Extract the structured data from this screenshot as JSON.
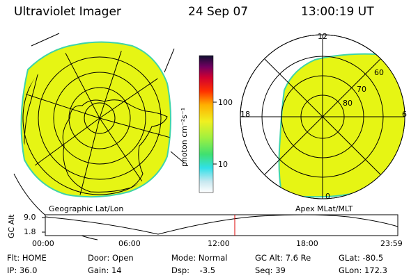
{
  "header": {
    "instrument": "Ultraviolet Imager",
    "date": "24 Sep 07",
    "time": "13:00:19 UT"
  },
  "colorbar": {
    "unit_label": "photon cm⁻²s⁻¹",
    "tick_high": "100",
    "tick_low": "10"
  },
  "geo_panel": {
    "label": "Geographic Lat/Lon"
  },
  "mag_panel": {
    "label": "Apex MLat/MLT",
    "mlt_12": "12",
    "mlt_18": "18",
    "mlt_6": "6",
    "mlt_0": "0",
    "mlat_60": "60",
    "mlat_70": "70",
    "mlat_80": "80"
  },
  "alt_plot": {
    "ylabel": "GC Alt",
    "y_high": "9.0",
    "y_low": "1.8",
    "x_ticks": [
      "00:00",
      "06:00",
      "12:00",
      "18:00",
      "23:59"
    ]
  },
  "status": {
    "flt": "Flt: HOME",
    "ip": "IP: 36.0",
    "door": "Door: Open",
    "gain": "Gain: 14",
    "mode": "Mode: Normal",
    "dsp": "Dsp:    -3.5",
    "gcalt": "GC Alt: 7.6 Re",
    "seq": "Seq: 39",
    "glat": "GLat: -80.5",
    "glon": "GLon: 172.3"
  },
  "colors": {
    "fill": "#e6f514",
    "edge": "#3ed4a8",
    "marker": "#dd0000"
  }
}
